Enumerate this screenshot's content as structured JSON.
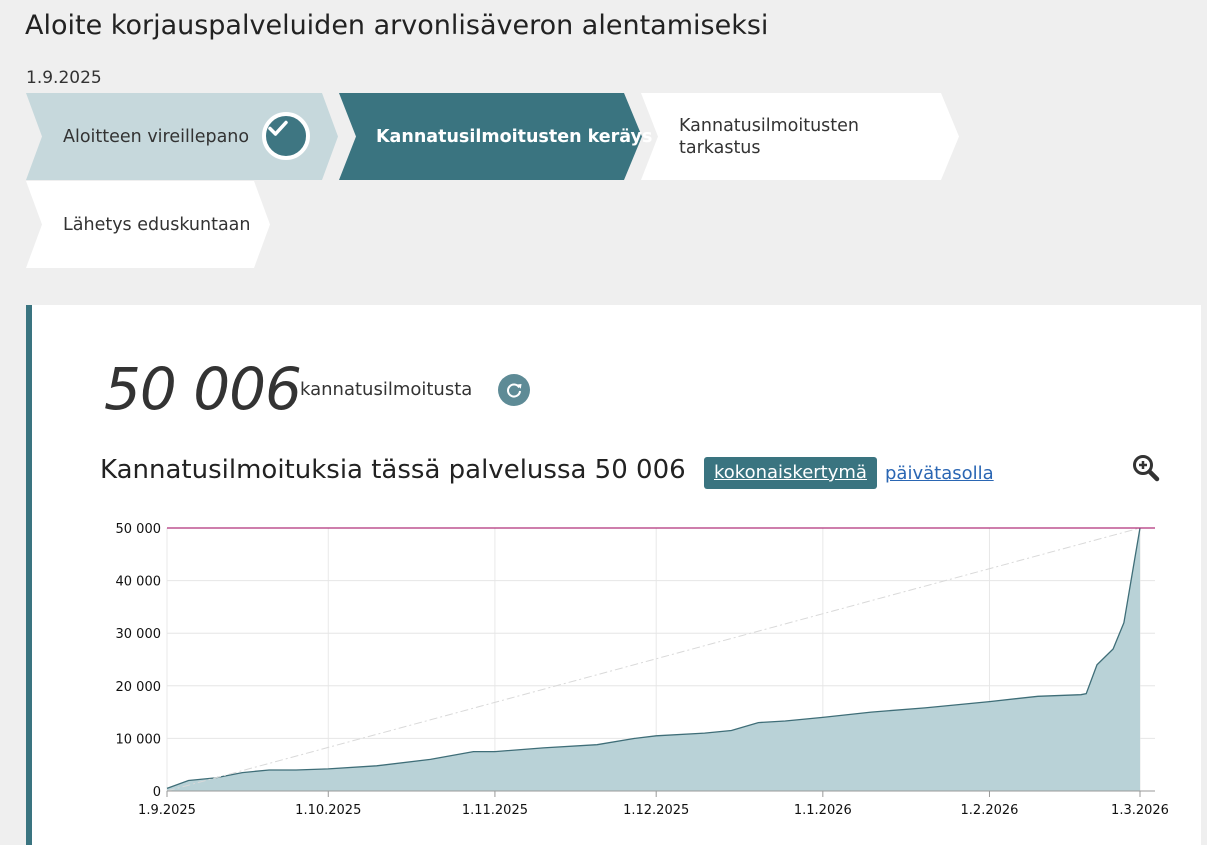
{
  "title": "Aloite korjauspalveluiden arvonlisäveron alentamiseksi",
  "date": "1.9.2025",
  "steps": [
    {
      "label": "Aloitteen vireillepano",
      "state": "done"
    },
    {
      "label": "Kannatusilmoitusten keräys",
      "state": "current"
    },
    {
      "label_line1": "Kannatusilmoitusten",
      "label_line2": "tarkastus",
      "state": "upcoming"
    },
    {
      "label": "Lähetys eduskuntaan",
      "state": "upcoming"
    }
  ],
  "icons": {
    "done": "check-icon",
    "refresh": "refresh-icon",
    "zoom": "zoom-in-icon"
  },
  "colors": {
    "accent": "#3a7480",
    "done_step": "#c6d8dc",
    "threshold": "#b0327a",
    "area": "#b9d2d7",
    "line": "#3f6e78",
    "link": "#2a66b3"
  },
  "counter": {
    "value": "50 006",
    "label": "kannatusilmoitusta"
  },
  "stats": {
    "title": "Kannatusilmoituksia tässä palvelussa 50 006",
    "tab_total": "kokonaiskertymä",
    "tab_daily": "päivätasolla"
  },
  "chart_data": {
    "type": "area",
    "ylim": [
      0,
      50000
    ],
    "threshold": 50000,
    "yticks": [
      "0",
      "10 000",
      "20 000",
      "30 000",
      "40 000",
      "50 000"
    ],
    "xticks": [
      "1.9.2025",
      "1.10.2025",
      "1.11.2025",
      "1.12.2025",
      "1.1.2026",
      "1.2.2026",
      "1.3.2026"
    ],
    "x_start": "2025-09-01",
    "x_end": "2026-03-01",
    "grid": true,
    "guide_line": {
      "from": [
        "2025-09-01",
        0
      ],
      "to": [
        "2026-03-01",
        50000
      ],
      "style": "dash-dot"
    },
    "series": [
      {
        "x": [
          "2025-09-01",
          "2025-09-05",
          "2025-09-10",
          "2025-09-15",
          "2025-09-20",
          "2025-09-25",
          "2025-10-01",
          "2025-10-10",
          "2025-10-20",
          "2025-10-28",
          "2025-11-01",
          "2025-11-10",
          "2025-11-20",
          "2025-11-27",
          "2025-12-01",
          "2025-12-10",
          "2025-12-15",
          "2025-12-20",
          "2025-12-25",
          "2026-01-01",
          "2026-01-10",
          "2026-01-20",
          "2026-02-01",
          "2026-02-10",
          "2026-02-18",
          "2026-02-19",
          "2026-02-21",
          "2026-02-24",
          "2026-02-26",
          "2026-02-28",
          "2026-03-01"
        ],
        "y": [
          500,
          2000,
          2500,
          3500,
          4000,
          4000,
          4200,
          4800,
          6000,
          7500,
          7500,
          8200,
          8800,
          10000,
          10500,
          11000,
          11500,
          13000,
          13300,
          14000,
          15000,
          15800,
          17000,
          18000,
          18300,
          18500,
          24000,
          27000,
          32000,
          44000,
          50006
        ]
      }
    ]
  }
}
